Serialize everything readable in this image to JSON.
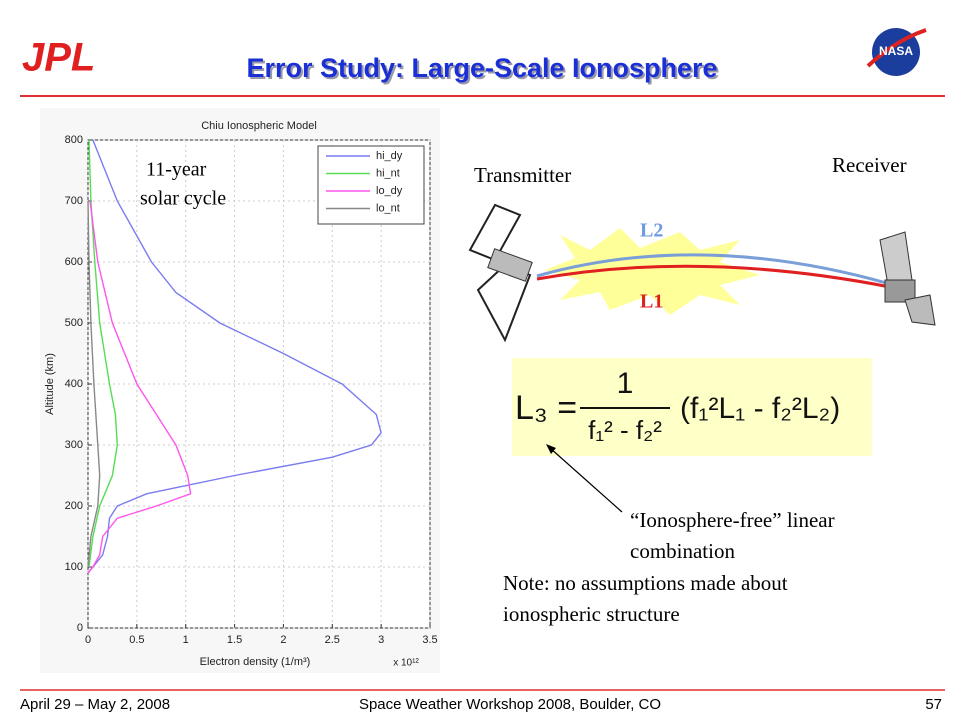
{
  "header": {
    "title": "Error Study: Large-Scale Ionosphere",
    "left_logo": "JPL",
    "right_logo": "NASA"
  },
  "chart_data": {
    "type": "line",
    "title": "Chiu Ionospheric Model",
    "x_label": "Electron density (1/m³)",
    "x_multiplier": "x 10¹²",
    "y_label": "Altitude (km)",
    "xlim": [
      0,
      3.5
    ],
    "xticks": [
      0,
      0.5,
      1,
      1.5,
      2,
      2.5,
      3,
      3.5
    ],
    "ylim": [
      0,
      800
    ],
    "yticks": [
      0,
      100,
      200,
      300,
      400,
      500,
      600,
      700,
      800
    ],
    "grid": true,
    "legend": "upper right",
    "series": [
      {
        "name": "hi_dy",
        "color": "#7b7bf0",
        "x": [
          0.0,
          0.05,
          0.15,
          0.2,
          0.22,
          0.3,
          0.6,
          0.9,
          1.5,
          2.5,
          2.9,
          3.0,
          2.95,
          2.6,
          2.0,
          1.35,
          0.9,
          0.65,
          0.3,
          0.05
        ],
        "y": [
          90,
          100,
          120,
          150,
          180,
          200,
          220,
          230,
          250,
          280,
          300,
          320,
          350,
          400,
          450,
          500,
          550,
          600,
          700,
          800
        ]
      },
      {
        "name": "hi_nt",
        "color": "#55dd55",
        "x": [
          0.01,
          0.05,
          0.12,
          0.25,
          0.3,
          0.28,
          0.22,
          0.12,
          0.07,
          0.03,
          0.01
        ],
        "y": [
          100,
          150,
          200,
          250,
          300,
          350,
          400,
          500,
          600,
          700,
          800
        ]
      },
      {
        "name": "lo_dy",
        "color": "#ff55ee",
        "x": [
          0.0,
          0.05,
          0.12,
          0.15,
          0.3,
          0.7,
          1.05,
          1.02,
          0.9,
          0.7,
          0.5,
          0.25,
          0.1,
          0.02
        ],
        "y": [
          90,
          100,
          120,
          150,
          180,
          200,
          220,
          250,
          300,
          350,
          400,
          500,
          600,
          700
        ]
      },
      {
        "name": "lo_nt",
        "color": "#888888",
        "x": [
          0.0,
          0.03,
          0.1,
          0.12,
          0.1,
          0.06,
          0.03,
          0.01,
          0.0
        ],
        "y": [
          100,
          150,
          200,
          250,
          300,
          400,
          500,
          600,
          700
        ]
      }
    ],
    "annotation": [
      "11-year",
      "solar cycle"
    ]
  },
  "diagram": {
    "transmitter": "Transmitter",
    "receiver": "Receiver",
    "l2": "L2",
    "l1": "L1"
  },
  "equation": {
    "lhs": "L₃ =",
    "numerator": "1",
    "denominator": "f₁² - f₂²",
    "factor": "(f₁²L₁ - f₂²L₂)"
  },
  "notes": {
    "combination": [
      "“Ionosphere-free” linear",
      "combination"
    ],
    "note": [
      "Note: no assumptions made about",
      "ionospheric structure"
    ]
  },
  "footer": {
    "date": "April 29 – May 2, 2008",
    "event": "Space Weather Workshop 2008, Boulder, CO",
    "page": "57"
  }
}
